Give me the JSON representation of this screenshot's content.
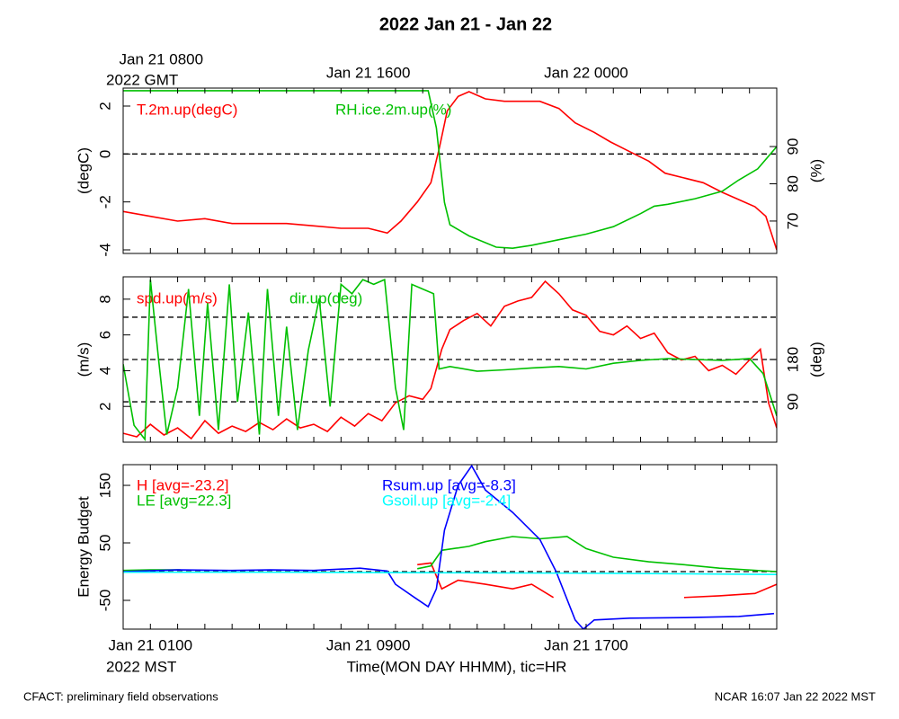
{
  "title": "2022 Jan 21 - Jan 22",
  "footer": {
    "left": "CFACT: preliminary field observations",
    "right": "NCAR 16:07 Jan 22 2022 MST"
  },
  "chart_data": [
    {
      "type": "line",
      "xlim": [
        0,
        24
      ],
      "xticks": [
        0,
        1,
        2,
        3,
        4,
        5,
        6,
        7,
        8,
        9,
        10,
        11,
        12,
        13,
        14,
        15,
        16,
        17,
        18,
        19,
        20,
        21,
        22,
        23,
        24
      ],
      "x2tick_labels": [
        {
          "value": 1,
          "label": "Jan 21 0800"
        },
        {
          "value": 9,
          "label": "Jan 21 1600"
        },
        {
          "value": 17,
          "label": "Jan 22 0000"
        }
      ],
      "x2_sublabel": "2022 GMT",
      "ylabel": "(degC)",
      "ylim": [
        -4.15,
        2.75
      ],
      "yticks": [
        -4,
        -2,
        0,
        2
      ],
      "y2label": "(%)",
      "y2lim": [
        61.3,
        105.7
      ],
      "y2ticks": [
        70,
        80,
        90
      ],
      "hlines": [
        0
      ],
      "series": [
        {
          "name": "T.2m.up(degC)",
          "color": "#ff0000",
          "x": [
            0,
            1,
            2,
            3,
            4,
            5,
            6,
            7,
            8,
            9,
            9.7,
            10.2,
            10.8,
            11.3,
            11.6,
            11.9,
            12.3,
            12.7,
            13.3,
            14,
            15.3,
            16,
            16.6,
            17.3,
            17.9,
            18.6,
            19.3,
            19.9,
            20.6,
            21.3,
            22,
            22.6,
            23.2,
            23.6,
            24
          ],
          "values": [
            -2.4,
            -2.6,
            -2.8,
            -2.7,
            -2.9,
            -2.9,
            -2.9,
            -3.0,
            -3.1,
            -3.1,
            -3.3,
            -2.8,
            -2.0,
            -1.2,
            0.2,
            1.8,
            2.4,
            2.6,
            2.3,
            2.2,
            2.2,
            1.9,
            1.3,
            0.9,
            0.5,
            0.1,
            -0.3,
            -0.8,
            -1.0,
            -1.2,
            -1.6,
            -1.9,
            -2.2,
            -2.6,
            -4.0
          ]
        },
        {
          "name": "RH.ice.2m.up(%)",
          "color": "#00c000",
          "axis": "y2",
          "x": [
            0,
            2,
            4,
            6,
            8,
            10,
            11.2,
            11.5,
            11.8,
            12,
            12.7,
            13.7,
            14.3,
            15,
            16,
            17,
            18,
            19,
            19.5,
            20,
            21,
            22,
            22.6,
            23.3,
            24
          ],
          "values": [
            105,
            105,
            105,
            105,
            105,
            105,
            105,
            95,
            75,
            69,
            66,
            63,
            62.7,
            63.5,
            65,
            66.5,
            68.5,
            72,
            74,
            74.5,
            76,
            78,
            81,
            84,
            90
          ]
        }
      ]
    },
    {
      "type": "line",
      "xlim": [
        0,
        24
      ],
      "xticks": [
        0,
        1,
        2,
        3,
        4,
        5,
        6,
        7,
        8,
        9,
        10,
        11,
        12,
        13,
        14,
        15,
        16,
        17,
        18,
        19,
        20,
        21,
        22,
        23,
        24
      ],
      "ylabel": "(m/s)",
      "ylim": [
        0,
        9.25
      ],
      "yticks": [
        2,
        4,
        6,
        8
      ],
      "y2label": "(deg)",
      "y2lim": [
        4,
        356
      ],
      "y2ticks": [
        90,
        180
      ],
      "hlines_y2": [
        90,
        180,
        270
      ],
      "series": [
        {
          "name": "spd.up(m/s)",
          "color": "#ff0000",
          "x": [
            0,
            0.5,
            1,
            1.5,
            2,
            2.5,
            3,
            3.5,
            4,
            4.5,
            5,
            5.5,
            6,
            6.5,
            7,
            7.5,
            8,
            8.5,
            9,
            9.5,
            10,
            10.5,
            11,
            11.3,
            11.7,
            12,
            12.5,
            13,
            13.5,
            14,
            14.5,
            15,
            15.5,
            16,
            16.5,
            17,
            17.5,
            18,
            18.5,
            19,
            19.5,
            20,
            20.5,
            21,
            21.5,
            22,
            22.5,
            23,
            23.4,
            23.7,
            24
          ],
          "values": [
            0.5,
            0.3,
            1.0,
            0.4,
            0.8,
            0.2,
            1.2,
            0.5,
            0.9,
            0.6,
            1.1,
            0.7,
            1.3,
            0.8,
            1.0,
            0.6,
            1.4,
            0.9,
            1.6,
            1.2,
            2.2,
            2.6,
            2.4,
            3.0,
            5.2,
            6.3,
            6.8,
            7.2,
            6.5,
            7.6,
            7.9,
            8.1,
            9.0,
            8.3,
            7.4,
            7.1,
            6.2,
            6.0,
            6.5,
            5.8,
            6.1,
            5.0,
            4.6,
            4.8,
            4.0,
            4.3,
            3.8,
            4.6,
            5.2,
            2.2,
            0.8
          ]
        },
        {
          "name": "dir.up(deg)",
          "color": "#00c000",
          "axis": "y2",
          "x": [
            0,
            0.4,
            0.8,
            1,
            1.3,
            1.6,
            2,
            2.4,
            2.8,
            3.1,
            3.5,
            3.9,
            4.2,
            4.6,
            5,
            5.3,
            5.7,
            6,
            6.4,
            6.8,
            7.2,
            7.6,
            8,
            8.4,
            8.8,
            9.2,
            9.6,
            10,
            10.3,
            10.6,
            11,
            11.4,
            11.6,
            12,
            13,
            14,
            15,
            16,
            17,
            18,
            19,
            20,
            21,
            22,
            23,
            23.5,
            24
          ],
          "values": [
            170,
            40,
            10,
            350,
            180,
            20,
            120,
            330,
            60,
            300,
            30,
            340,
            90,
            280,
            20,
            330,
            60,
            250,
            30,
            200,
            310,
            80,
            340,
            320,
            350,
            340,
            350,
            120,
            30,
            340,
            330,
            320,
            160,
            165,
            155,
            158,
            162,
            165,
            160,
            172,
            178,
            182,
            180,
            178,
            182,
            150,
            60
          ]
        }
      ]
    },
    {
      "type": "line",
      "xlim": [
        0,
        24
      ],
      "xticks": [
        0,
        1,
        2,
        3,
        4,
        5,
        6,
        7,
        8,
        9,
        10,
        11,
        12,
        13,
        14,
        15,
        16,
        17,
        18,
        19,
        20,
        21,
        22,
        23,
        24
      ],
      "xtick_labels": [
        {
          "value": 1,
          "label": "Jan 21 0100"
        },
        {
          "value": 9,
          "label": "Jan 21 0900"
        },
        {
          "value": 17,
          "label": "Jan 21 1700"
        }
      ],
      "x_sublabel": "2022 MST",
      "xlabel": "Time(MON DAY HHMM), tic=HR",
      "ylabel": "Energy Budget",
      "ylim": [
        -100,
        186
      ],
      "yticks": [
        -50,
        50,
        150
      ],
      "hlines": [
        0
      ],
      "series": [
        {
          "name": "H [avg=-23.2]",
          "color": "#ff0000",
          "x": [
            10.8,
            11.3,
            11.7,
            12.3,
            13.3,
            14.3,
            15,
            15.8,
            18,
            20.6,
            21.9,
            23.2,
            24
          ],
          "values": [
            12,
            15,
            -30,
            -15,
            -22,
            -30,
            -22,
            -45,
            null,
            -45,
            -42,
            -38,
            -22
          ]
        },
        {
          "name": "LE [avg=22.3]",
          "color": "#00c000",
          "x": [
            0,
            1,
            2.1,
            5,
            10.8,
            11.3,
            11.7,
            12.7,
            13.3,
            14.3,
            15.3,
            16.3,
            17,
            18,
            19.3,
            20.6,
            21.9,
            24
          ],
          "values": [
            2,
            3,
            3,
            null,
            5,
            10,
            37,
            44,
            52,
            61,
            57,
            61,
            40,
            25,
            17,
            12,
            6,
            0
          ]
        },
        {
          "name": "Rsum.up [avg=-8.3]",
          "color": "#0000ff",
          "x": [
            0,
            2,
            4,
            5.4,
            7,
            8.7,
            9.7,
            10,
            10.7,
            11.2,
            11.5,
            11.8,
            12.3,
            12.8,
            13.3,
            14.3,
            15.3,
            15.9,
            16.6,
            16.9,
            17.3,
            18.6,
            20.6,
            22.6,
            23.9
          ],
          "values": [
            0,
            3,
            2,
            3,
            2,
            6,
            1,
            -22,
            -45,
            -61,
            -30,
            72,
            150,
            184,
            142,
            103,
            56,
            0,
            -84,
            -100,
            -84,
            -81,
            -80,
            -78,
            -73
          ]
        },
        {
          "name": "Gsoil.up [avg=-2.4]",
          "color": "#00ffff",
          "x": [
            0,
            6,
            12,
            18,
            24
          ],
          "values": [
            -1,
            -1,
            -2,
            -3,
            -5
          ]
        }
      ]
    }
  ]
}
